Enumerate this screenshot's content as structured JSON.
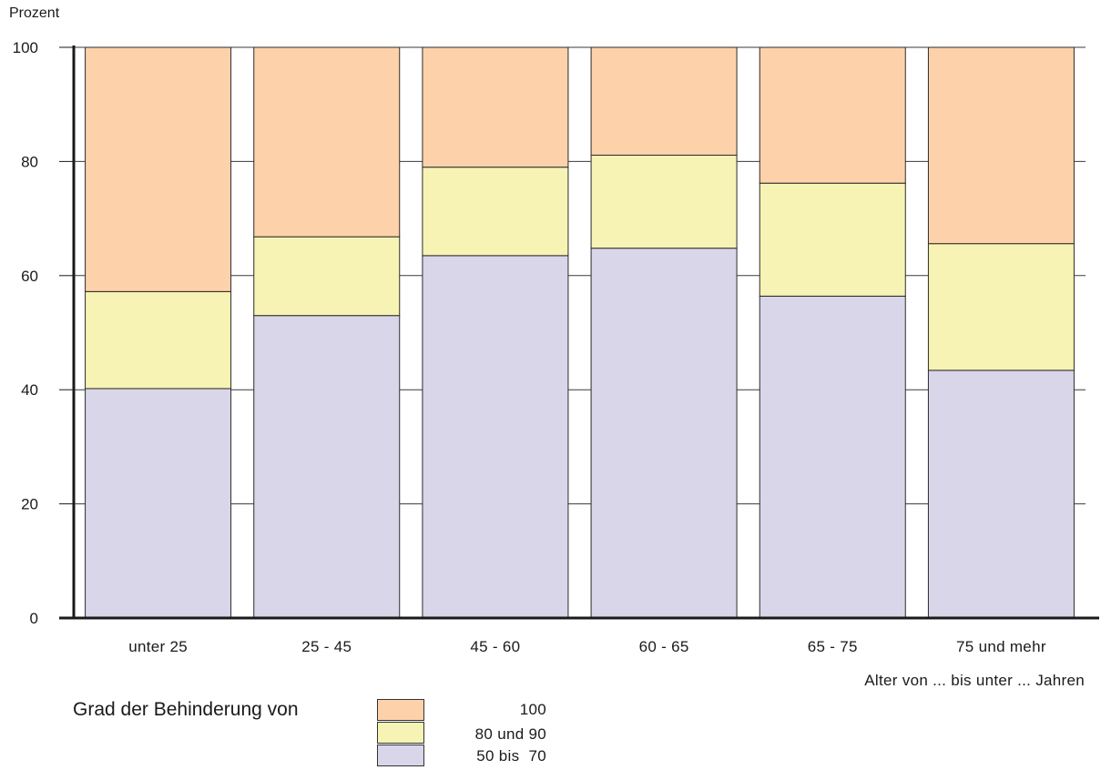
{
  "chart_data": {
    "type": "bar",
    "stacked": true,
    "ylabel": "Prozent",
    "xlabel": "Alter von ... bis unter ... Jahren",
    "categories": [
      "unter 25",
      "25 - 45",
      "45 - 60",
      "60 - 65",
      "65 - 75",
      "75 und mehr"
    ],
    "ylim": [
      0,
      100
    ],
    "yticks": [
      0,
      20,
      40,
      60,
      80,
      100
    ],
    "grid": true,
    "series": [
      {
        "name": "50 bis  70",
        "color": "#d9d6ea",
        "values": [
          40.2,
          53.0,
          63.5,
          64.8,
          56.4,
          43.4
        ]
      },
      {
        "name": "80 und 90",
        "color": "#f7f3b4",
        "values": [
          17.0,
          13.8,
          15.5,
          16.3,
          19.8,
          22.2
        ]
      },
      {
        "name": "100",
        "color": "#fdd2aa",
        "values": [
          42.8,
          33.2,
          21.0,
          18.9,
          23.8,
          34.4
        ]
      }
    ],
    "legend": {
      "title": "Grad der Behinderung von",
      "placement": "bottom",
      "order": [
        "100",
        "80 und 90",
        "50 bis  70"
      ]
    }
  }
}
